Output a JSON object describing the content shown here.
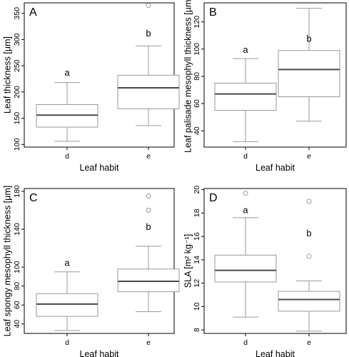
{
  "chart_data": [
    {
      "type": "boxplot",
      "panel_label": "A",
      "xlabel": "Leaf habit",
      "ylabel": "Leaf thickness [µm]",
      "categories": [
        "d",
        "e"
      ],
      "ylim": [
        95,
        370
      ],
      "yticks": [
        100,
        150,
        200,
        250,
        300,
        350
      ],
      "boxes": [
        {
          "category": "d",
          "whisker_low": 106,
          "q1": 133,
          "median": 156,
          "q3": 176,
          "whisker_high": 218,
          "outliers": [],
          "letter": "a",
          "letter_y": 238
        },
        {
          "category": "e",
          "whisker_low": 136,
          "q1": 168,
          "median": 208,
          "q3": 232,
          "whisker_high": 288,
          "outliers": [
            365
          ],
          "letter": "b",
          "letter_y": 313
        }
      ]
    },
    {
      "type": "boxplot",
      "panel_label": "B",
      "xlabel": "Leaf habit",
      "ylabel": "Leaf palisade mesophyll thickness [µm]",
      "categories": [
        "d",
        "e"
      ],
      "ylim": [
        28,
        134
      ],
      "yticks": [
        40,
        60,
        80,
        100,
        120
      ],
      "boxes": [
        {
          "category": "d",
          "whisker_low": 32,
          "q1": 55,
          "median": 67,
          "q3": 75,
          "whisker_high": 93,
          "outliers": [],
          "letter": "a",
          "letter_y": 100
        },
        {
          "category": "e",
          "whisker_low": 47,
          "q1": 65,
          "median": 85,
          "q3": 99,
          "whisker_high": 130,
          "outliers": [],
          "letter": "b",
          "letter_y": 108
        }
      ]
    },
    {
      "type": "boxplot",
      "panel_label": "C",
      "xlabel": "Leaf habit",
      "ylabel": "Leaf spongy mesophyll thickness [µm]",
      "categories": [
        "d",
        "e"
      ],
      "ylim": [
        30,
        183
      ],
      "yticks": [
        40,
        60,
        80,
        100,
        140,
        180
      ],
      "boxes": [
        {
          "category": "d",
          "whisker_low": 33,
          "q1": 48,
          "median": 61,
          "q3": 72,
          "whisker_high": 95,
          "outliers": [],
          "letter": "a",
          "letter_y": 105
        },
        {
          "category": "e",
          "whisker_low": 53,
          "q1": 74,
          "median": 85,
          "q3": 98,
          "whisker_high": 122,
          "outliers": [
            160,
            175
          ],
          "letter": "b",
          "letter_y": 143
        }
      ]
    },
    {
      "type": "boxplot",
      "panel_label": "D",
      "xlabel": "Leaf habit",
      "ylabel": "SLA [m² kg⁻¹]",
      "categories": [
        "d",
        "e"
      ],
      "ylim": [
        7.7,
        20.1
      ],
      "yticks": [
        8,
        10,
        12,
        14,
        16,
        18,
        20
      ],
      "boxes": [
        {
          "category": "d",
          "whisker_low": 9.1,
          "q1": 12.1,
          "median": 13.1,
          "q3": 14.4,
          "whisker_high": 17.6,
          "outliers": [
            19.7
          ],
          "letter": "a",
          "letter_y": 18.3
        },
        {
          "category": "e",
          "whisker_low": 7.9,
          "q1": 9.6,
          "median": 10.6,
          "q3": 11.3,
          "whisker_high": 12.2,
          "outliers": [
            14.3,
            19.0
          ],
          "letter": "b",
          "letter_y": 16.3
        }
      ]
    }
  ]
}
